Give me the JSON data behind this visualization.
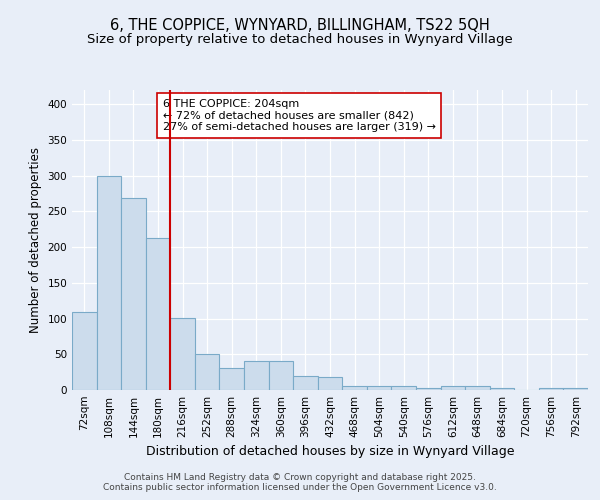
{
  "title": "6, THE COPPICE, WYNYARD, BILLINGHAM, TS22 5QH",
  "subtitle": "Size of property relative to detached houses in Wynyard Village",
  "xlabel": "Distribution of detached houses by size in Wynyard Village",
  "ylabel": "Number of detached properties",
  "categories": [
    "72sqm",
    "108sqm",
    "144sqm",
    "180sqm",
    "216sqm",
    "252sqm",
    "288sqm",
    "324sqm",
    "360sqm",
    "396sqm",
    "432sqm",
    "468sqm",
    "504sqm",
    "540sqm",
    "576sqm",
    "612sqm",
    "648sqm",
    "684sqm",
    "720sqm",
    "756sqm",
    "792sqm"
  ],
  "values": [
    109,
    299,
    269,
    213,
    101,
    51,
    31,
    40,
    40,
    19,
    18,
    6,
    6,
    6,
    3,
    6,
    6,
    3,
    0,
    3,
    3
  ],
  "bar_color": "#ccdcec",
  "bar_edge_color": "#7aaac8",
  "subject_line_index": 4,
  "subject_line_color": "#cc0000",
  "annotation_text": "6 THE COPPICE: 204sqm\n← 72% of detached houses are smaller (842)\n27% of semi-detached houses are larger (319) →",
  "annotation_box_facecolor": "#ffffff",
  "annotation_box_edgecolor": "#cc0000",
  "footer_text": "Contains HM Land Registry data © Crown copyright and database right 2025.\nContains public sector information licensed under the Open Government Licence v3.0.",
  "background_color": "#e8eef8",
  "grid_color": "#ffffff",
  "ylim": [
    0,
    420
  ],
  "yticks": [
    0,
    50,
    100,
    150,
    200,
    250,
    300,
    350,
    400
  ],
  "title_fontsize": 10.5,
  "subtitle_fontsize": 9.5,
  "xlabel_fontsize": 9,
  "ylabel_fontsize": 8.5,
  "tick_fontsize": 7.5,
  "annotation_fontsize": 8,
  "footer_fontsize": 6.5
}
